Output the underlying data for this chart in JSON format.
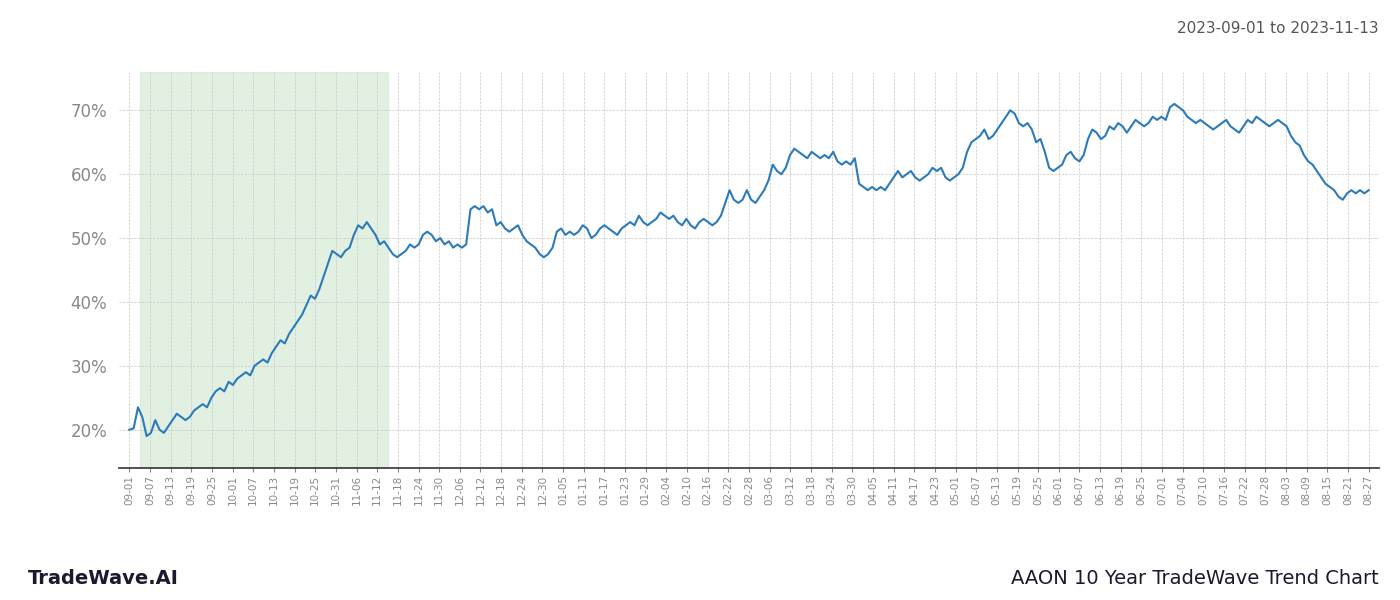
{
  "title_date_range": "2023-09-01 to 2023-11-13",
  "footer_left": "TradeWave.AI",
  "footer_right": "AAON 10 Year TradeWave Trend Chart",
  "line_color": "#2b7bba",
  "line_width": 1.5,
  "shaded_color": "#d6ead6",
  "shaded_alpha": 0.7,
  "background_color": "#ffffff",
  "grid_color": "#c8c8c8",
  "ytick_color": "#888888",
  "xtick_color": "#888888",
  "ylim": [
    14,
    76
  ],
  "yticks": [
    20,
    30,
    40,
    50,
    60,
    70
  ],
  "x_labels": [
    "09-01",
    "09-07",
    "09-13",
    "09-19",
    "09-25",
    "10-01",
    "10-07",
    "10-13",
    "10-19",
    "10-25",
    "10-31",
    "11-06",
    "11-12",
    "11-18",
    "11-24",
    "11-30",
    "12-06",
    "12-12",
    "12-18",
    "12-24",
    "12-30",
    "01-05",
    "01-11",
    "01-17",
    "01-23",
    "01-29",
    "02-04",
    "02-10",
    "02-16",
    "02-22",
    "02-28",
    "03-06",
    "03-12",
    "03-18",
    "03-24",
    "03-30",
    "04-05",
    "04-11",
    "04-17",
    "04-23",
    "05-01",
    "05-07",
    "05-13",
    "05-19",
    "05-25",
    "06-01",
    "06-07",
    "06-13",
    "06-19",
    "06-25",
    "07-01",
    "07-04",
    "07-10",
    "07-16",
    "07-22",
    "07-28",
    "08-03",
    "08-09",
    "08-15",
    "08-21",
    "08-27"
  ],
  "shaded_x_start_label": "09-07",
  "shaded_x_end_label": "11-12",
  "y_values": [
    20.0,
    20.2,
    23.5,
    22.0,
    19.0,
    19.5,
    21.5,
    20.0,
    19.5,
    20.5,
    21.5,
    22.5,
    22.0,
    21.5,
    22.0,
    23.0,
    23.5,
    24.0,
    23.5,
    25.0,
    26.0,
    26.5,
    26.0,
    27.5,
    27.0,
    28.0,
    28.5,
    29.0,
    28.5,
    30.0,
    30.5,
    31.0,
    30.5,
    32.0,
    33.0,
    34.0,
    33.5,
    35.0,
    36.0,
    37.0,
    38.0,
    39.5,
    41.0,
    40.5,
    42.0,
    44.0,
    46.0,
    48.0,
    47.5,
    47.0,
    48.0,
    48.5,
    50.5,
    52.0,
    51.5,
    52.5,
    51.5,
    50.5,
    49.0,
    49.5,
    48.5,
    47.5,
    47.0,
    47.5,
    48.0,
    49.0,
    48.5,
    49.0,
    50.5,
    51.0,
    50.5,
    49.5,
    50.0,
    49.0,
    49.5,
    48.5,
    49.0,
    48.5,
    49.0,
    54.5,
    55.0,
    54.5,
    55.0,
    54.0,
    54.5,
    52.0,
    52.5,
    51.5,
    51.0,
    51.5,
    52.0,
    50.5,
    49.5,
    49.0,
    48.5,
    47.5,
    47.0,
    47.5,
    48.5,
    51.0,
    51.5,
    50.5,
    51.0,
    50.5,
    51.0,
    52.0,
    51.5,
    50.0,
    50.5,
    51.5,
    52.0,
    51.5,
    51.0,
    50.5,
    51.5,
    52.0,
    52.5,
    52.0,
    53.5,
    52.5,
    52.0,
    52.5,
    53.0,
    54.0,
    53.5,
    53.0,
    53.5,
    52.5,
    52.0,
    53.0,
    52.0,
    51.5,
    52.5,
    53.0,
    52.5,
    52.0,
    52.5,
    53.5,
    55.5,
    57.5,
    56.0,
    55.5,
    56.0,
    57.5,
    56.0,
    55.5,
    56.5,
    57.5,
    59.0,
    61.5,
    60.5,
    60.0,
    61.0,
    63.0,
    64.0,
    63.5,
    63.0,
    62.5,
    63.5,
    63.0,
    62.5,
    63.0,
    62.5,
    63.5,
    62.0,
    61.5,
    62.0,
    61.5,
    62.5,
    58.5,
    58.0,
    57.5,
    58.0,
    57.5,
    58.0,
    57.5,
    58.5,
    59.5,
    60.5,
    59.5,
    60.0,
    60.5,
    59.5,
    59.0,
    59.5,
    60.0,
    61.0,
    60.5,
    61.0,
    59.5,
    59.0,
    59.5,
    60.0,
    61.0,
    63.5,
    65.0,
    65.5,
    66.0,
    67.0,
    65.5,
    66.0,
    67.0,
    68.0,
    69.0,
    70.0,
    69.5,
    68.0,
    67.5,
    68.0,
    67.0,
    65.0,
    65.5,
    63.5,
    61.0,
    60.5,
    61.0,
    61.5,
    63.0,
    63.5,
    62.5,
    62.0,
    63.0,
    65.5,
    67.0,
    66.5,
    65.5,
    66.0,
    67.5,
    67.0,
    68.0,
    67.5,
    66.5,
    67.5,
    68.5,
    68.0,
    67.5,
    68.0,
    69.0,
    68.5,
    69.0,
    68.5,
    70.5,
    71.0,
    70.5,
    70.0,
    69.0,
    68.5,
    68.0,
    68.5,
    68.0,
    67.5,
    67.0,
    67.5,
    68.0,
    68.5,
    67.5,
    67.0,
    66.5,
    67.5,
    68.5,
    68.0,
    69.0,
    68.5,
    68.0,
    67.5,
    68.0,
    68.5,
    68.0,
    67.5,
    66.0,
    65.0,
    64.5,
    63.0,
    62.0,
    61.5,
    60.5,
    59.5,
    58.5,
    58.0,
    57.5,
    56.5,
    56.0,
    57.0,
    57.5,
    57.0,
    57.5,
    57.0,
    57.5
  ]
}
